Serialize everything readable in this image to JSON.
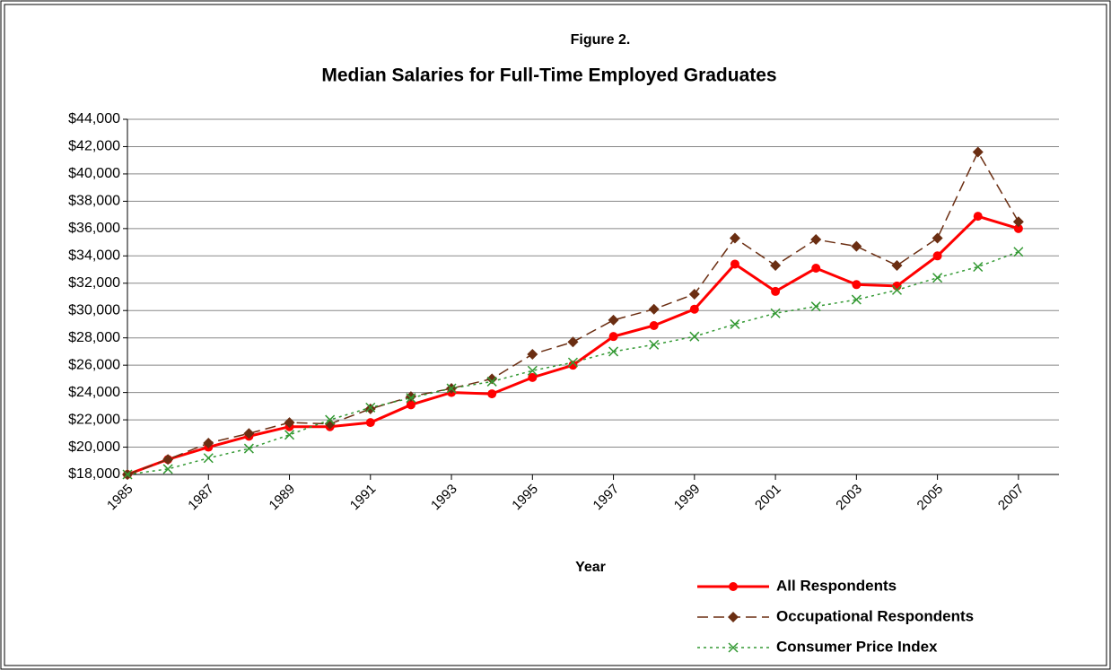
{
  "chart_data": {
    "type": "line",
    "title": "Figure 2.",
    "subtitle": "Median Salaries for Full-Time Employed Graduates",
    "xlabel": "Year",
    "x": [
      1985,
      1986,
      1987,
      1988,
      1989,
      1990,
      1991,
      1992,
      1993,
      1994,
      1995,
      1996,
      1997,
      1998,
      1999,
      2000,
      2001,
      2002,
      2003,
      2004,
      2005,
      2006,
      2007
    ],
    "series": [
      {
        "name": "All Respondents",
        "color": "#ff0000",
        "marker": "circle",
        "dash": "solid",
        "values": [
          18000,
          19100,
          20000,
          20800,
          21500,
          21500,
          21800,
          23100,
          24000,
          23900,
          25100,
          26000,
          28100,
          28900,
          30100,
          33400,
          31400,
          33100,
          31900,
          31800,
          34000,
          36900,
          36000
        ]
      },
      {
        "name": "Occupational Respondents",
        "color": "#6b2e12",
        "marker": "diamond",
        "dash": "dashed",
        "values": [
          18000,
          19100,
          20300,
          21000,
          21800,
          21700,
          22800,
          23700,
          24300,
          25000,
          26800,
          27700,
          29300,
          30100,
          31200,
          35300,
          33300,
          35200,
          34700,
          33300,
          35300,
          41600,
          36500
        ]
      },
      {
        "name": "Consumer Price Index",
        "color": "#339933",
        "marker": "x",
        "dash": "dotted",
        "values": [
          18000,
          18400,
          19200,
          19900,
          20900,
          22000,
          22900,
          23600,
          24300,
          24800,
          25600,
          26200,
          27000,
          27500,
          28100,
          29000,
          29800,
          30300,
          30800,
          31500,
          32400,
          33200,
          34300
        ]
      }
    ],
    "xlim": [
      1985,
      2008
    ],
    "xticks": [
      1985,
      1987,
      1989,
      1991,
      1993,
      1995,
      1997,
      1999,
      2001,
      2003,
      2005,
      2007
    ],
    "ylim": [
      18000,
      44000
    ],
    "yticks": [
      {
        "value": 18000,
        "label": "$18,000"
      },
      {
        "value": 20000,
        "label": "$20,000"
      },
      {
        "value": 22000,
        "label": "$22,000"
      },
      {
        "value": 24000,
        "label": "$24,000"
      },
      {
        "value": 26000,
        "label": "$26,000"
      },
      {
        "value": 28000,
        "label": "$28,000"
      },
      {
        "value": 30000,
        "label": "$30,000"
      },
      {
        "value": 32000,
        "label": "$32,000"
      },
      {
        "value": 34000,
        "label": "$34,000"
      },
      {
        "value": 36000,
        "label": "$36,000"
      },
      {
        "value": 38000,
        "label": "$38,000"
      },
      {
        "value": 40000,
        "label": "$40,000"
      },
      {
        "value": 42000,
        "label": "$42,000"
      },
      {
        "value": 44000,
        "label": "$44,000"
      }
    ],
    "grid": true,
    "legend": "bottom-right"
  }
}
